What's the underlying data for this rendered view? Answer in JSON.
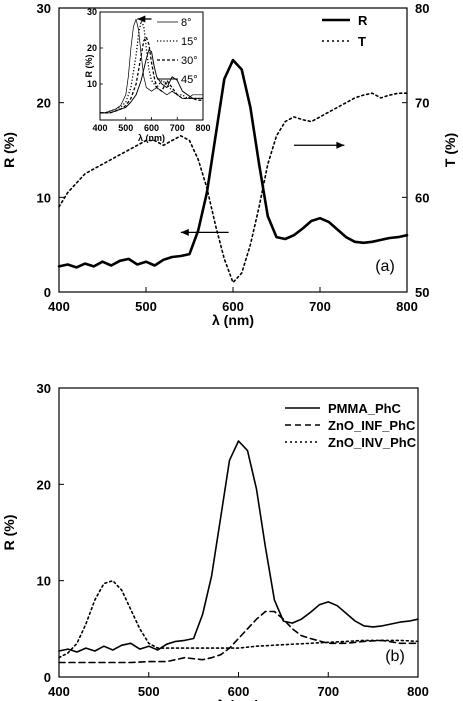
{
  "chart_data": [
    {
      "type": "line",
      "panel_label": "(a)",
      "xlabel": "λ (nm)",
      "ylabel": "R (%)",
      "y2label": "T (%)",
      "xlim": [
        400,
        800
      ],
      "ylim": [
        0,
        30
      ],
      "y2lim": [
        50,
        80
      ],
      "xticks": [
        "400",
        "500",
        "600",
        "700",
        "800"
      ],
      "yticks": [
        "0",
        "10",
        "20",
        "30"
      ],
      "y2ticks": [
        "50",
        "60",
        "70",
        "80"
      ],
      "legend_position": "top-right",
      "series": [
        {
          "name": "R",
          "axis": "left",
          "style": "solid-thick",
          "x": [
            400,
            410,
            420,
            430,
            440,
            450,
            460,
            470,
            480,
            490,
            500,
            510,
            520,
            530,
            540,
            550,
            560,
            570,
            580,
            590,
            600,
            610,
            620,
            630,
            640,
            650,
            660,
            670,
            680,
            690,
            700,
            710,
            720,
            730,
            740,
            750,
            760,
            770,
            780,
            790,
            800
          ],
          "y": [
            2.7,
            2.9,
            2.6,
            3.0,
            2.7,
            3.2,
            2.8,
            3.3,
            3.5,
            2.9,
            3.2,
            2.8,
            3.4,
            3.7,
            3.8,
            4.0,
            6.5,
            10.5,
            16.5,
            22.5,
            24.5,
            23.5,
            19.5,
            13.5,
            8.0,
            5.8,
            5.6,
            6.0,
            6.7,
            7.5,
            7.8,
            7.4,
            6.6,
            5.8,
            5.3,
            5.2,
            5.3,
            5.5,
            5.7,
            5.8,
            6.0
          ]
        },
        {
          "name": "T",
          "axis": "right",
          "style": "dotted",
          "x": [
            400,
            410,
            420,
            430,
            440,
            450,
            460,
            470,
            480,
            490,
            500,
            510,
            520,
            530,
            540,
            550,
            560,
            570,
            580,
            590,
            600,
            610,
            620,
            630,
            640,
            650,
            660,
            670,
            680,
            690,
            700,
            710,
            720,
            730,
            740,
            750,
            760,
            770,
            780,
            790,
            800
          ],
          "y": [
            59.0,
            60.5,
            61.5,
            62.5,
            63.0,
            63.5,
            64.0,
            64.5,
            65.0,
            65.5,
            66.0,
            66.0,
            65.5,
            66.0,
            66.5,
            66.0,
            64.0,
            61.0,
            57.0,
            53.5,
            51.0,
            52.0,
            55.0,
            59.0,
            63.5,
            66.5,
            68.0,
            68.5,
            68.2,
            68.0,
            68.5,
            69.0,
            69.5,
            70.0,
            70.5,
            70.8,
            71.0,
            70.5,
            70.8,
            71.0,
            71.0
          ]
        }
      ],
      "annotations": [
        "arrow pointing left from R peak to left axis",
        "arrow pointing right from T curve to right axis"
      ]
    },
    {
      "type": "line",
      "inset_of": "(a)",
      "xlabel": "λ (nm)",
      "ylabel": "R (%)",
      "xlim": [
        400,
        800
      ],
      "ylim": [
        0,
        30
      ],
      "xticks": [
        "400",
        "500",
        "600",
        "700",
        "800"
      ],
      "yticks": [
        "10",
        "20",
        "30"
      ],
      "legend_position": "top-right",
      "series": [
        {
          "name": "8°",
          "style": "solid-thin",
          "x": [
            400,
            420,
            440,
            460,
            480,
            500,
            510,
            520,
            530,
            540,
            550,
            560,
            570,
            580,
            600,
            620,
            640,
            660,
            680,
            700,
            720,
            740,
            760,
            780,
            800
          ],
          "y": [
            2,
            2,
            2.5,
            3,
            4,
            7,
            12,
            20,
            26,
            28,
            25,
            18,
            12,
            9,
            8,
            9,
            8,
            7,
            8,
            7,
            6,
            6,
            7,
            7,
            7
          ]
        },
        {
          "name": "15°",
          "style": "dotted",
          "x": [
            400,
            420,
            440,
            460,
            480,
            500,
            520,
            540,
            550,
            560,
            570,
            580,
            590,
            600,
            620,
            640,
            660,
            680,
            700,
            720,
            740,
            760,
            780,
            800
          ],
          "y": [
            2,
            2,
            2.5,
            3,
            3.5,
            5,
            9,
            18,
            24,
            27.5,
            26,
            20,
            14,
            11,
            9,
            11,
            10,
            8,
            7,
            7,
            6,
            6,
            6,
            6
          ]
        },
        {
          "name": "30°",
          "style": "dashed",
          "x": [
            400,
            420,
            440,
            460,
            480,
            500,
            520,
            540,
            560,
            570,
            580,
            590,
            600,
            610,
            620,
            640,
            660,
            680,
            700,
            720,
            740,
            760,
            780,
            800
          ],
          "y": [
            2,
            2,
            2,
            2.5,
            3,
            4,
            6,
            10,
            18,
            22,
            23,
            21,
            16,
            12,
            9,
            8,
            11,
            9,
            7,
            6,
            6,
            6,
            5.5,
            5.5
          ]
        },
        {
          "name": "45°",
          "style": "solid-medium",
          "x": [
            400,
            420,
            440,
            460,
            480,
            500,
            520,
            540,
            560,
            580,
            590,
            600,
            610,
            620,
            640,
            660,
            680,
            700,
            720,
            740,
            760,
            780,
            800
          ],
          "y": [
            2,
            2,
            2,
            2.5,
            3,
            3.5,
            5,
            7,
            11,
            17,
            19.5,
            19,
            15,
            12,
            10,
            9,
            12,
            11,
            8,
            7,
            6,
            6,
            6
          ]
        }
      ],
      "annotations": [
        "arrow over peaks pointing toward shorter wavelength"
      ]
    },
    {
      "type": "line",
      "panel_label": "(b)",
      "xlabel": "λ (nm)",
      "ylabel": "R (%)",
      "xlim": [
        400,
        800
      ],
      "ylim": [
        0,
        30
      ],
      "xticks": [
        "400",
        "500",
        "600",
        "700",
        "800"
      ],
      "yticks": [
        "0",
        "10",
        "20",
        "30"
      ],
      "legend_position": "top-right",
      "series": [
        {
          "name": "PMMA_PhC",
          "style": "solid",
          "x": [
            400,
            410,
            420,
            430,
            440,
            450,
            460,
            470,
            480,
            490,
            500,
            510,
            520,
            530,
            540,
            550,
            560,
            570,
            580,
            590,
            600,
            610,
            620,
            630,
            640,
            650,
            660,
            670,
            680,
            690,
            700,
            710,
            720,
            730,
            740,
            750,
            760,
            770,
            780,
            790,
            800
          ],
          "y": [
            2.7,
            2.9,
            2.6,
            3.0,
            2.7,
            3.2,
            2.8,
            3.3,
            3.5,
            2.9,
            3.2,
            2.8,
            3.4,
            3.7,
            3.8,
            4.0,
            6.5,
            10.5,
            16.5,
            22.5,
            24.5,
            23.5,
            19.5,
            13.5,
            8.0,
            5.8,
            5.6,
            6.0,
            6.7,
            7.5,
            7.8,
            7.4,
            6.6,
            5.8,
            5.3,
            5.2,
            5.3,
            5.5,
            5.7,
            5.8,
            6.0
          ]
        },
        {
          "name": "ZnO_INF_PhC",
          "style": "dashed",
          "x": [
            400,
            420,
            440,
            460,
            480,
            500,
            520,
            540,
            560,
            570,
            580,
            590,
            600,
            610,
            620,
            630,
            640,
            650,
            660,
            670,
            680,
            700,
            720,
            740,
            760,
            780,
            800
          ],
          "y": [
            1.5,
            1.5,
            1.5,
            1.5,
            1.5,
            1.6,
            1.6,
            2.0,
            1.8,
            2.0,
            2.3,
            3.0,
            4.0,
            5.0,
            6.0,
            6.8,
            6.8,
            6.0,
            5.0,
            4.3,
            4.0,
            3.5,
            3.5,
            3.7,
            3.8,
            3.5,
            3.5
          ]
        },
        {
          "name": "ZnO_INV_PhC",
          "style": "dotted",
          "x": [
            400,
            410,
            420,
            430,
            440,
            450,
            460,
            470,
            480,
            490,
            500,
            510,
            520,
            540,
            560,
            580,
            600,
            620,
            640,
            660,
            680,
            700,
            720,
            740,
            760,
            780,
            800
          ],
          "y": [
            2.0,
            2.5,
            3.5,
            5.5,
            8.0,
            9.7,
            10.0,
            9.0,
            7.0,
            5.0,
            3.5,
            3.0,
            3.0,
            3.0,
            3.0,
            3.0,
            3.0,
            3.2,
            3.3,
            3.4,
            3.5,
            3.6,
            3.7,
            3.8,
            3.8,
            3.8,
            3.7
          ]
        }
      ]
    }
  ]
}
